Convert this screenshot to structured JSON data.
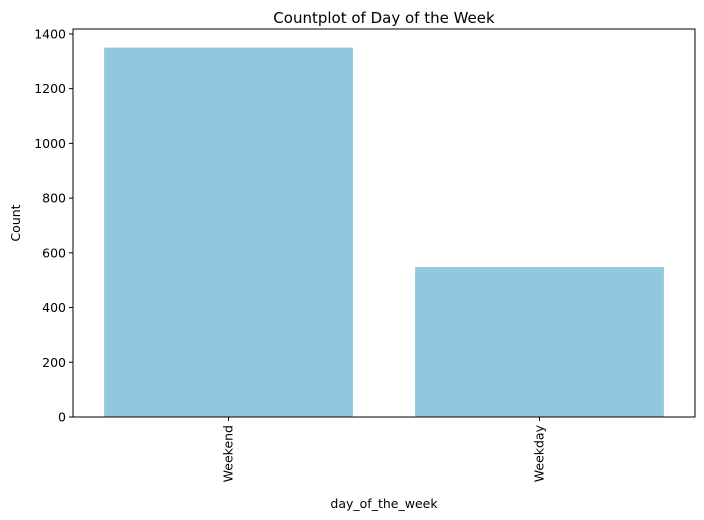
{
  "chart_data": {
    "type": "bar",
    "title": "Countplot of Day of the Week",
    "xlabel": "day_of_the_week",
    "ylabel": "Count",
    "categories": [
      "Weekend",
      "Weekday"
    ],
    "values": [
      1350,
      548
    ],
    "ylim": [
      0,
      1418
    ],
    "yticks": [
      0,
      200,
      400,
      600,
      800,
      1000,
      1200,
      1400
    ],
    "bar_color": "#92c8dd",
    "grid": false,
    "legend": "none",
    "xtick_rotation": "vertical"
  }
}
